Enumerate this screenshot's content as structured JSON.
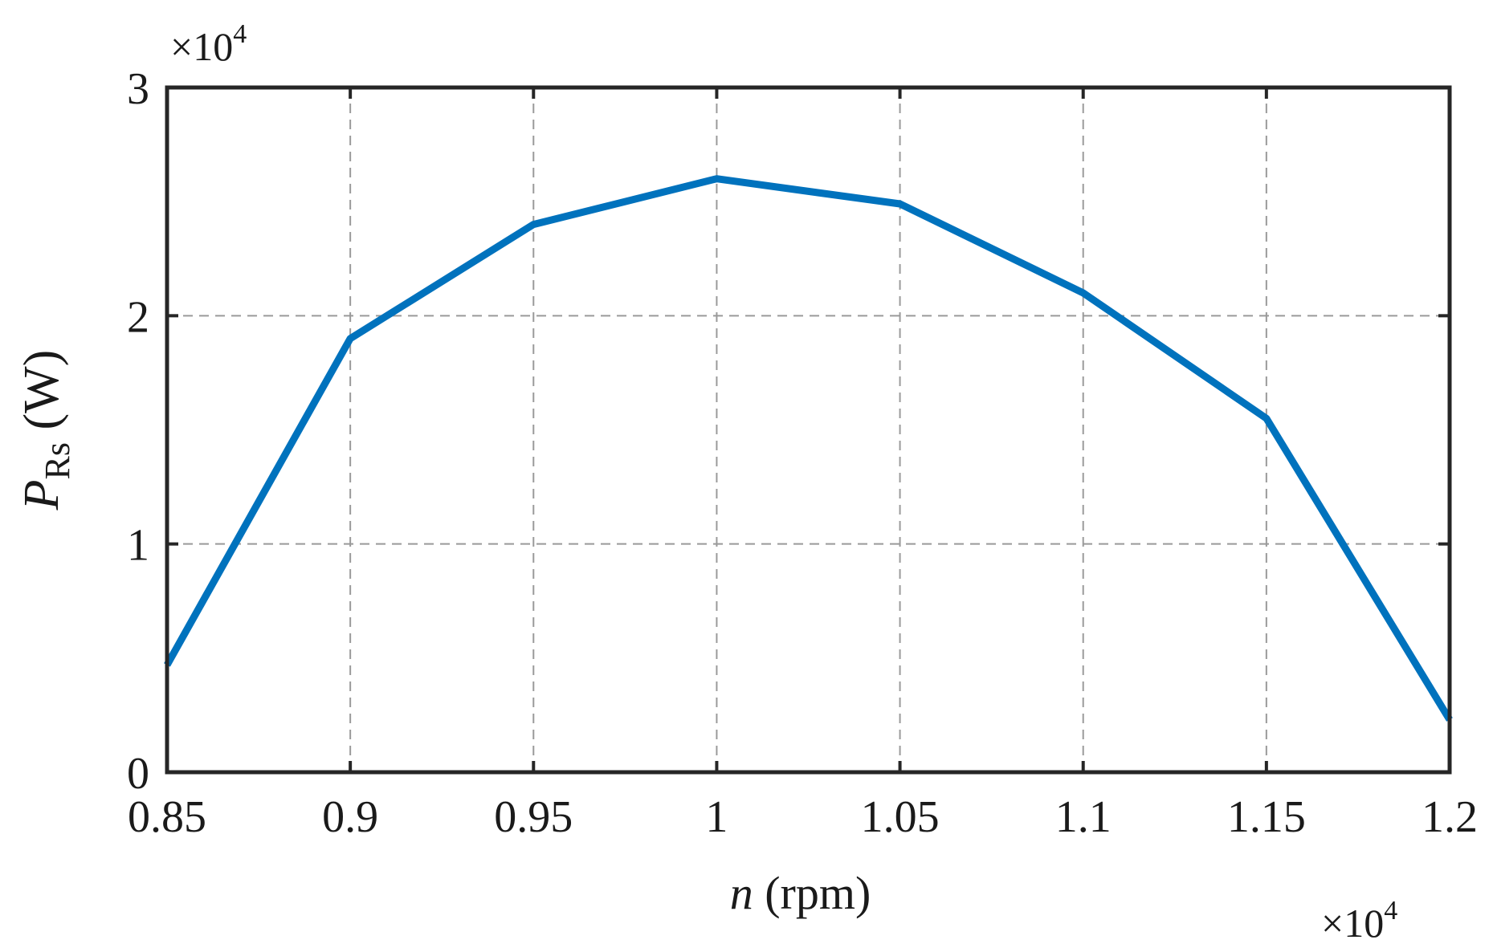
{
  "chart_data": {
    "type": "line",
    "title": "",
    "xlabel": {
      "var": "n",
      "unit": " (rpm)"
    },
    "ylabel": {
      "var": "P",
      "sub": "Rs",
      "unit": " (W)"
    },
    "x_multiplier": {
      "base": "×10",
      "exp": "4"
    },
    "y_multiplier": {
      "base": "×10",
      "exp": "4"
    },
    "xlim": [
      0.85,
      1.2
    ],
    "ylim": [
      0,
      3
    ],
    "xticks": [
      "0.85",
      "0.9",
      "0.95",
      "1",
      "1.05",
      "1.1",
      "1.15",
      "1.2"
    ],
    "yticks": [
      "0",
      "1",
      "2",
      "3"
    ],
    "grid": true,
    "x": [
      0.85,
      0.9,
      0.95,
      1.0,
      1.05,
      1.1,
      1.15,
      1.2
    ],
    "series": [
      {
        "values": [
          0.47,
          1.9,
          2.4,
          2.6,
          2.49,
          2.1,
          1.55,
          0.23
        ],
        "color": "#0072BD"
      }
    ]
  }
}
